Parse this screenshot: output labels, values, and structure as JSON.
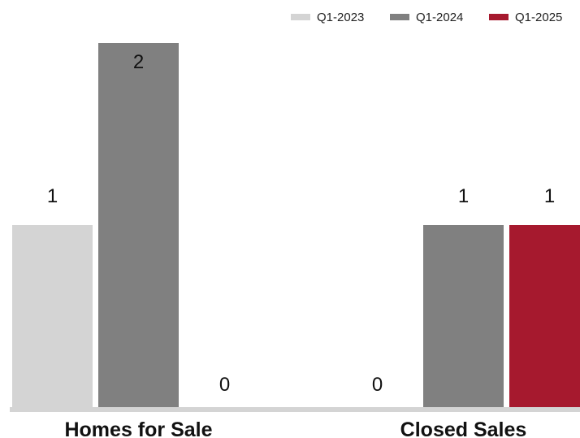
{
  "chart_data": {
    "type": "bar",
    "categories": [
      "Homes for Sale",
      "Closed Sales"
    ],
    "series": [
      {
        "name": "Q1-2023",
        "color": "#d4d4d4",
        "values": [
          1,
          0
        ]
      },
      {
        "name": "Q1-2024",
        "color": "#808080",
        "values": [
          2,
          1
        ]
      },
      {
        "name": "Q1-2025",
        "color": "#a6192e",
        "values": [
          0,
          1
        ]
      }
    ],
    "ylim": [
      0,
      2
    ],
    "grid": false,
    "legend_position": "top-right",
    "axis_color": "#d4d4d4"
  }
}
